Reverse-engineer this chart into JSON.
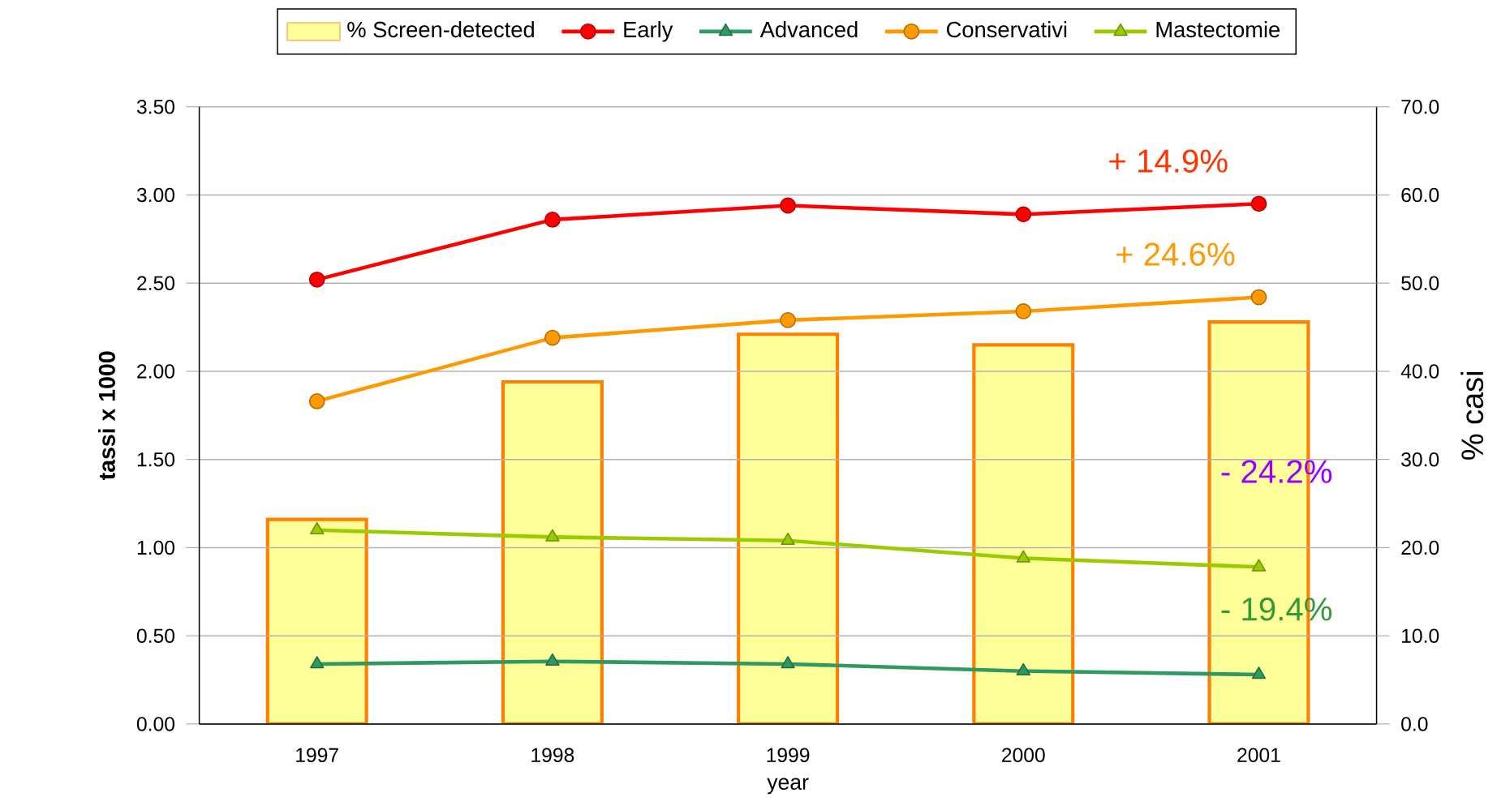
{
  "chart_data": {
    "type": "line",
    "xlabel": "year",
    "ylabel": "tassi x 1000",
    "y2label": "% casi",
    "categories": [
      "1997",
      "1998",
      "1999",
      "2000",
      "2001"
    ],
    "series": [
      {
        "name": "% Screen-detected",
        "type": "bar",
        "axis": "y2",
        "color": "#ffff99",
        "values": [
          23.2,
          38.8,
          44.2,
          43.0,
          45.6
        ]
      },
      {
        "name": "Early",
        "color": "#ff0000",
        "marker": "circle",
        "values": [
          2.52,
          2.86,
          2.94,
          2.89,
          2.95
        ]
      },
      {
        "name": "Advanced",
        "color": "#2e9960",
        "marker": "triangle",
        "values": [
          0.34,
          0.355,
          0.34,
          0.3,
          0.28
        ]
      },
      {
        "name": "Conservativi",
        "color": "#ff9900",
        "marker": "circle",
        "values": [
          1.83,
          2.19,
          2.29,
          2.34,
          2.42
        ]
      },
      {
        "name": "Mastectomie",
        "color": "#99cc00",
        "marker": "triangle",
        "values": [
          1.1,
          1.06,
          1.04,
          0.94,
          0.89
        ]
      }
    ],
    "ylim": [
      0,
      3.5
    ],
    "yticks": [
      {
        "value": 0,
        "label": "0.00"
      },
      {
        "value": 0.5,
        "label": "0.50"
      },
      {
        "value": 1,
        "label": "1.00"
      },
      {
        "value": 1.5,
        "label": "1.50"
      },
      {
        "value": 2,
        "label": "2.00"
      },
      {
        "value": 2.5,
        "label": "2.50"
      },
      {
        "value": 3,
        "label": "3.00"
      },
      {
        "value": 3.5,
        "label": "3.50"
      }
    ],
    "y2lim": [
      0,
      70
    ],
    "y2ticks": [
      {
        "value": 0,
        "label": "0.0"
      },
      {
        "value": 10,
        "label": "10.0"
      },
      {
        "value": 20,
        "label": "20.0"
      },
      {
        "value": 30,
        "label": "30.0"
      },
      {
        "value": 40,
        "label": "40.0"
      },
      {
        "value": 50,
        "label": "50.0"
      },
      {
        "value": 60,
        "label": "60.0"
      },
      {
        "value": 70,
        "label": "70.0"
      }
    ],
    "grid": "y",
    "legend": "top",
    "annotations": [
      "+ 14.9%",
      "+ 24.6%",
      "- 24.2%",
      "- 19.4%"
    ]
  }
}
